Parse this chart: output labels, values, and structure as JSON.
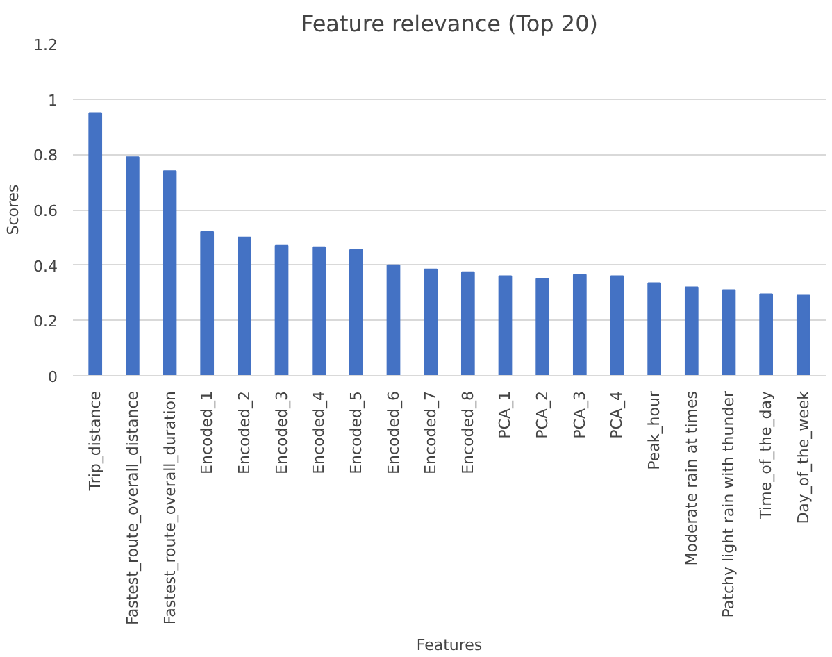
{
  "chart_data": {
    "type": "bar",
    "title": "Feature relevance (Top 20)",
    "xlabel": "Features",
    "ylabel": "Scores",
    "categories": [
      "Trip_distance",
      "Fastest_route_overall_distance",
      "Fastest_route_overall_duration",
      "Encoded_1",
      "Encoded_2",
      "Encoded_3",
      "Encoded_4",
      "Encoded_5",
      "Encoded_6",
      "Encoded_7",
      "Encoded_8",
      "PCA_1",
      "PCA_2",
      "PCA_3",
      "PCA_4",
      "Peak_hour",
      "Moderate rain at times",
      "Patchy light rain with thunder",
      "Time_of_the_day",
      "Day_of_the_week"
    ],
    "values": [
      0.95,
      0.79,
      0.74,
      0.52,
      0.5,
      0.47,
      0.465,
      0.455,
      0.4,
      0.385,
      0.375,
      0.36,
      0.35,
      0.365,
      0.36,
      0.335,
      0.32,
      0.31,
      0.295,
      0.29
    ],
    "color": "#4472c4",
    "ylim": [
      0,
      1.2
    ],
    "yticks": [
      0,
      {
        "value": 0.2,
        "label": "0.2"
      },
      {
        "value": 0.4,
        "label": "0.4"
      },
      {
        "value": 0.6,
        "label": "0.6"
      },
      {
        "value": 0.8,
        "label": "0.8"
      },
      1,
      {
        "value": 1.2,
        "label": "1.2"
      }
    ],
    "grid": "y"
  }
}
